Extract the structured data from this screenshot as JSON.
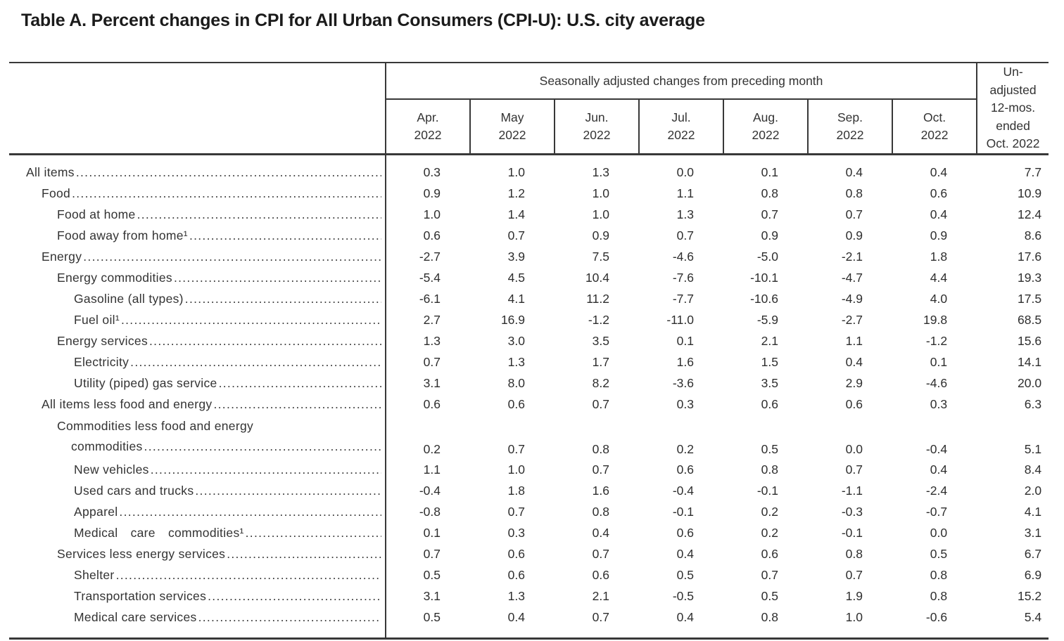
{
  "page": {
    "title": "Table A. Percent changes in CPI for All Urban Consumers (CPI-U): U.S. city average"
  },
  "table": {
    "span_header": "Seasonally adjusted changes from preceding month",
    "month_headers": [
      {
        "month": "Apr.",
        "year": "2022"
      },
      {
        "month": "May",
        "year": "2022"
      },
      {
        "month": "Jun.",
        "year": "2022"
      },
      {
        "month": "Jul.",
        "year": "2022"
      },
      {
        "month": "Aug.",
        "year": "2022"
      },
      {
        "month": "Sep.",
        "year": "2022"
      },
      {
        "month": "Oct.",
        "year": "2022"
      }
    ],
    "annual_header_lines": [
      "Un-",
      "adjusted",
      "12-mos.",
      "ended",
      "Oct. 2022"
    ],
    "rows": [
      {
        "label": "All items",
        "indent": 0,
        "values": [
          "0.3",
          "1.0",
          "1.3",
          "0.0",
          "0.1",
          "0.4",
          "0.4"
        ],
        "annual": "7.7"
      },
      {
        "label": "Food",
        "indent": 1,
        "values": [
          "0.9",
          "1.2",
          "1.0",
          "1.1",
          "0.8",
          "0.8",
          "0.6"
        ],
        "annual": "10.9"
      },
      {
        "label": "Food at home",
        "indent": 2,
        "values": [
          "1.0",
          "1.4",
          "1.0",
          "1.3",
          "0.7",
          "0.7",
          "0.4"
        ],
        "annual": "12.4"
      },
      {
        "label": "Food away from home¹",
        "indent": 2,
        "values": [
          "0.6",
          "0.7",
          "0.9",
          "0.7",
          "0.9",
          "0.9",
          "0.9"
        ],
        "annual": "8.6"
      },
      {
        "label": "Energy",
        "indent": 1,
        "values": [
          "-2.7",
          "3.9",
          "7.5",
          "-4.6",
          "-5.0",
          "-2.1",
          "1.8"
        ],
        "annual": "17.6"
      },
      {
        "label": "Energy commodities",
        "indent": 2,
        "values": [
          "-5.4",
          "4.5",
          "10.4",
          "-7.6",
          "-10.1",
          "-4.7",
          "4.4"
        ],
        "annual": "19.3"
      },
      {
        "label": "Gasoline (all types)",
        "indent": 3,
        "values": [
          "-6.1",
          "4.1",
          "11.2",
          "-7.7",
          "-10.6",
          "-4.9",
          "4.0"
        ],
        "annual": "17.5"
      },
      {
        "label": "Fuel oil¹",
        "indent": 3,
        "values": [
          "2.7",
          "16.9",
          "-1.2",
          "-11.0",
          "-5.9",
          "-2.7",
          "19.8"
        ],
        "annual": "68.5"
      },
      {
        "label": "Energy services",
        "indent": 2,
        "values": [
          "1.3",
          "3.0",
          "3.5",
          "0.1",
          "2.1",
          "1.1",
          "-1.2"
        ],
        "annual": "15.6"
      },
      {
        "label": "Electricity",
        "indent": 3,
        "values": [
          "0.7",
          "1.3",
          "1.7",
          "1.6",
          "1.5",
          "0.4",
          "0.1"
        ],
        "annual": "14.1"
      },
      {
        "label": "Utility (piped) gas service",
        "indent": 3,
        "values": [
          "3.1",
          "8.0",
          "8.2",
          "-3.6",
          "3.5",
          "2.9",
          "-4.6"
        ],
        "annual": "20.0"
      },
      {
        "label": "All items less food and energy",
        "indent": 1,
        "values": [
          "0.6",
          "0.6",
          "0.7",
          "0.3",
          "0.6",
          "0.6",
          "0.3"
        ],
        "annual": "6.3"
      },
      {
        "label": "Commodities less food and energy",
        "label2": "commodities",
        "indent": 2,
        "values": [
          "0.2",
          "0.7",
          "0.8",
          "0.2",
          "0.5",
          "0.0",
          "-0.4"
        ],
        "annual": "5.1"
      },
      {
        "label": "New vehicles",
        "indent": 3,
        "values": [
          "1.1",
          "1.0",
          "0.7",
          "0.6",
          "0.8",
          "0.7",
          "0.4"
        ],
        "annual": "8.4"
      },
      {
        "label": "Used cars and trucks",
        "indent": 3,
        "values": [
          "-0.4",
          "1.8",
          "1.6",
          "-0.4",
          "-0.1",
          "-1.1",
          "-2.4"
        ],
        "annual": "2.0"
      },
      {
        "label": "Apparel",
        "indent": 3,
        "values": [
          "-0.8",
          "0.7",
          "0.8",
          "-0.1",
          "0.2",
          "-0.3",
          "-0.7"
        ],
        "annual": "4.1"
      },
      {
        "label": "Medical care commodities¹",
        "indent": 3,
        "wide": true,
        "values": [
          "0.1",
          "0.3",
          "0.4",
          "0.6",
          "0.2",
          "-0.1",
          "0.0"
        ],
        "annual": "3.1"
      },
      {
        "label": "Services less energy services",
        "indent": 2,
        "values": [
          "0.7",
          "0.6",
          "0.7",
          "0.4",
          "0.6",
          "0.8",
          "0.5"
        ],
        "annual": "6.7"
      },
      {
        "label": "Shelter",
        "indent": 3,
        "values": [
          "0.5",
          "0.6",
          "0.6",
          "0.5",
          "0.7",
          "0.7",
          "0.8"
        ],
        "annual": "6.9"
      },
      {
        "label": "Transportation services",
        "indent": 3,
        "values": [
          "3.1",
          "1.3",
          "2.1",
          "-0.5",
          "0.5",
          "1.9",
          "0.8"
        ],
        "annual": "15.2"
      },
      {
        "label": "Medical care services",
        "indent": 3,
        "values": [
          "0.5",
          "0.4",
          "0.7",
          "0.4",
          "0.8",
          "1.0",
          "-0.6"
        ],
        "annual": "5.4"
      }
    ]
  }
}
